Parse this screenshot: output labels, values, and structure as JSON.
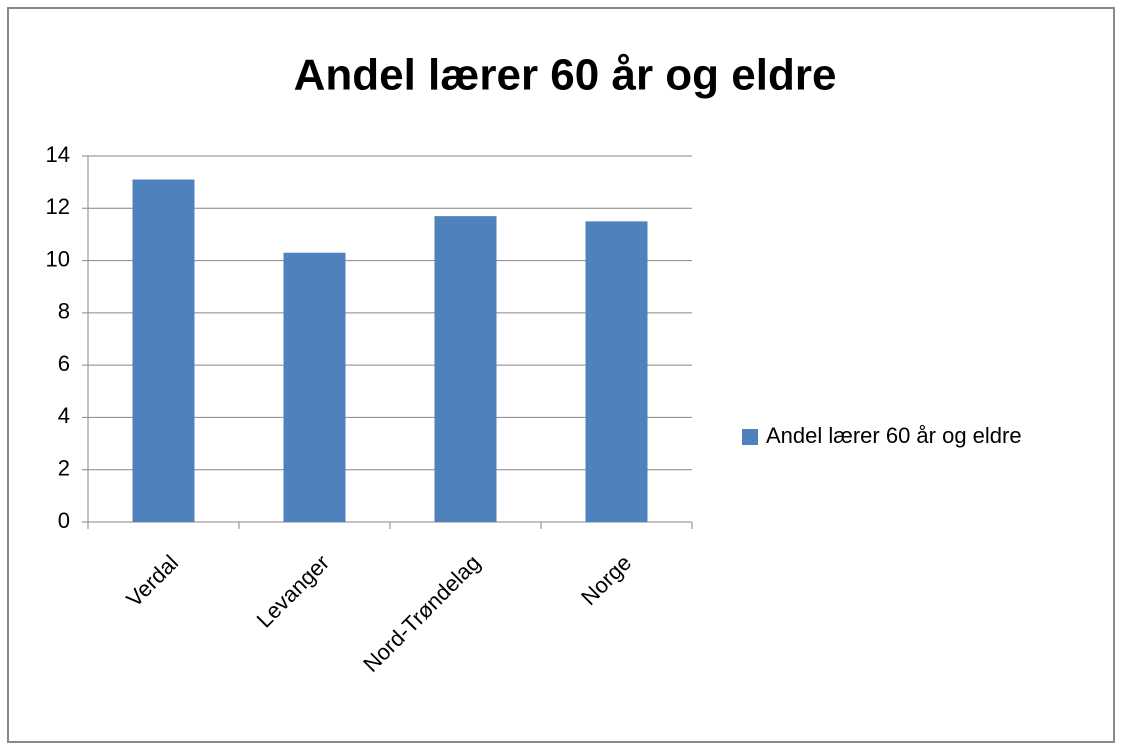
{
  "chart_data": {
    "type": "bar",
    "title": "Andel lærer 60 år og eldre",
    "categories": [
      "Verdal",
      "Levanger",
      "Nord-Trøndelag",
      "Norge"
    ],
    "series": [
      {
        "name": "Andel lærer 60 år og eldre",
        "color": "#4f81bd",
        "values": [
          13.1,
          10.3,
          11.7,
          11.5
        ]
      }
    ],
    "ylim": [
      0,
      14
    ],
    "yticks": [
      0,
      2,
      4,
      6,
      8,
      10,
      12,
      14
    ],
    "grid": true,
    "legend": "right"
  }
}
